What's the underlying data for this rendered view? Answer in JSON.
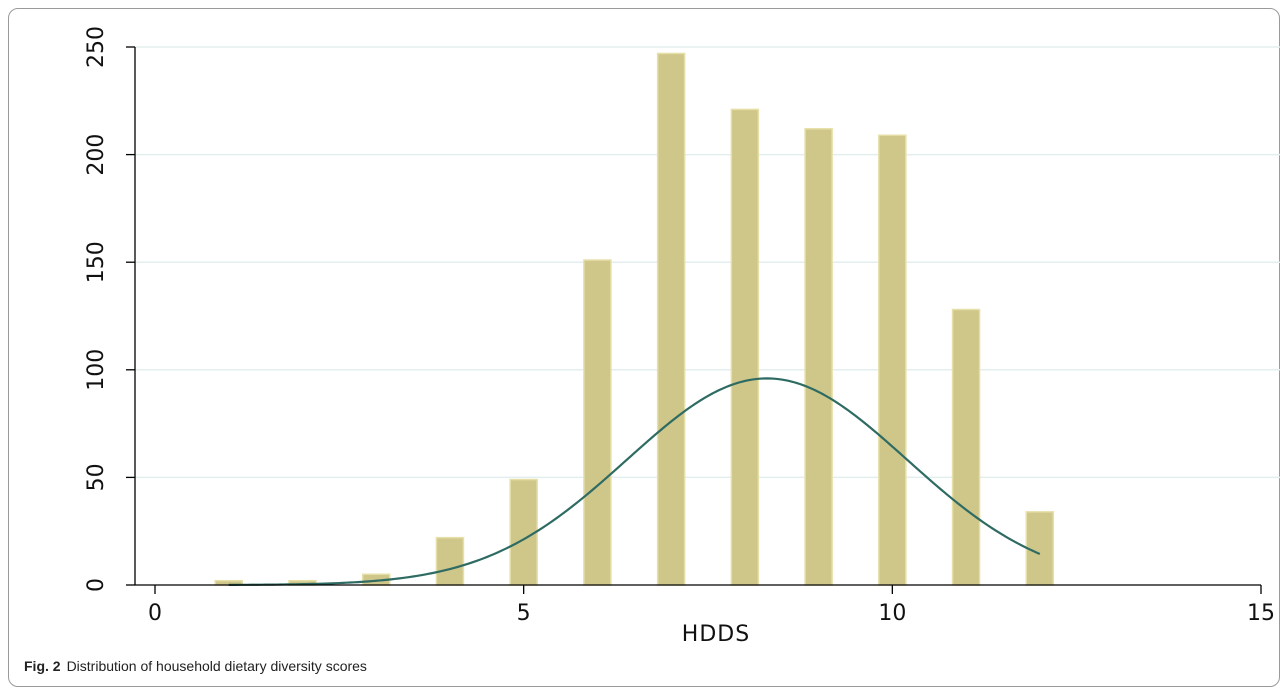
{
  "chart_data": {
    "type": "bar",
    "subtype": "histogram-with-normal-density",
    "xlabel": "HDDS",
    "ylabel": "",
    "xlim": [
      0,
      15
    ],
    "ylim": [
      0,
      250
    ],
    "xticks": [
      0,
      5,
      10,
      15
    ],
    "yticks": [
      0,
      50,
      100,
      150,
      200,
      250
    ],
    "grid": true,
    "x": [
      1,
      2,
      3,
      4,
      5,
      6,
      7,
      8,
      9,
      10,
      11,
      12
    ],
    "values": [
      2,
      2,
      5,
      22,
      49,
      151,
      247,
      221,
      212,
      209,
      128,
      34
    ],
    "curve": {
      "type": "normal",
      "mean": 8.3,
      "sd": 1.9,
      "peak": 96,
      "x_start": 1,
      "x_end": 12
    },
    "colors": {
      "bar_fill": "#CFC68A",
      "bar_edge": "#E6DFA8",
      "curve": "#2E6B63",
      "grid": "#E3EEEE",
      "axis": "#000000"
    }
  },
  "caption": {
    "label": "Fig. 2",
    "text": "Distribution of household dietary diversity scores"
  }
}
